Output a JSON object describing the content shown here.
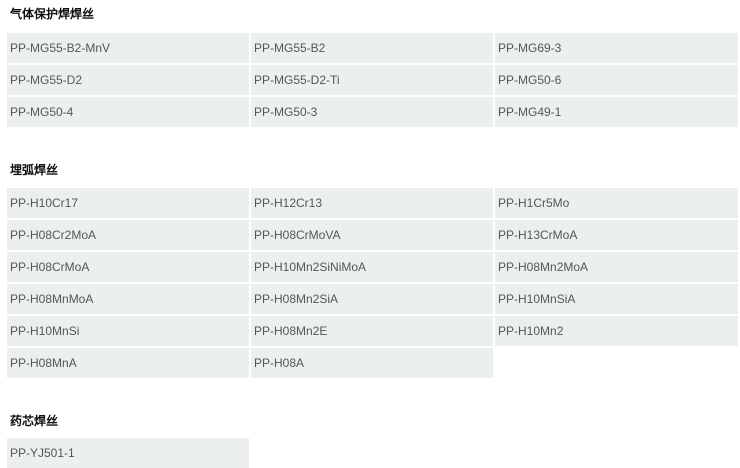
{
  "sections": [
    {
      "title": "气体保护焊焊丝",
      "items": [
        "PP-MG55-B2-MnV",
        "PP-MG55-B2",
        "PP-MG69-3",
        "PP-MG55-D2",
        "PP-MG55-D2-Ti",
        "PP-MG50-6",
        "PP-MG50-4",
        "PP-MG50-3",
        "PP-MG49-1"
      ]
    },
    {
      "title": "埋弧焊丝",
      "items": [
        "PP-H10Cr17",
        "PP-H12Cr13",
        "PP-H1Cr5Mo",
        "PP-H08Cr2MoA",
        "PP-H08CrMoVA",
        "PP-H13CrMoA",
        "PP-H08CrMoA",
        "PP-H10Mn2SiNiMoA",
        "PP-H08Mn2MoA",
        "PP-H08MnMoA",
        "PP-H08Mn2SiA",
        "PP-H10MnSiA",
        "PP-H10MnSi",
        "PP-H08Mn2E",
        "PP-H10Mn2",
        "PP-H08MnA",
        "PP-H08A"
      ]
    },
    {
      "title": "药芯焊丝",
      "items": [
        "PP-YJ501-1"
      ]
    }
  ]
}
